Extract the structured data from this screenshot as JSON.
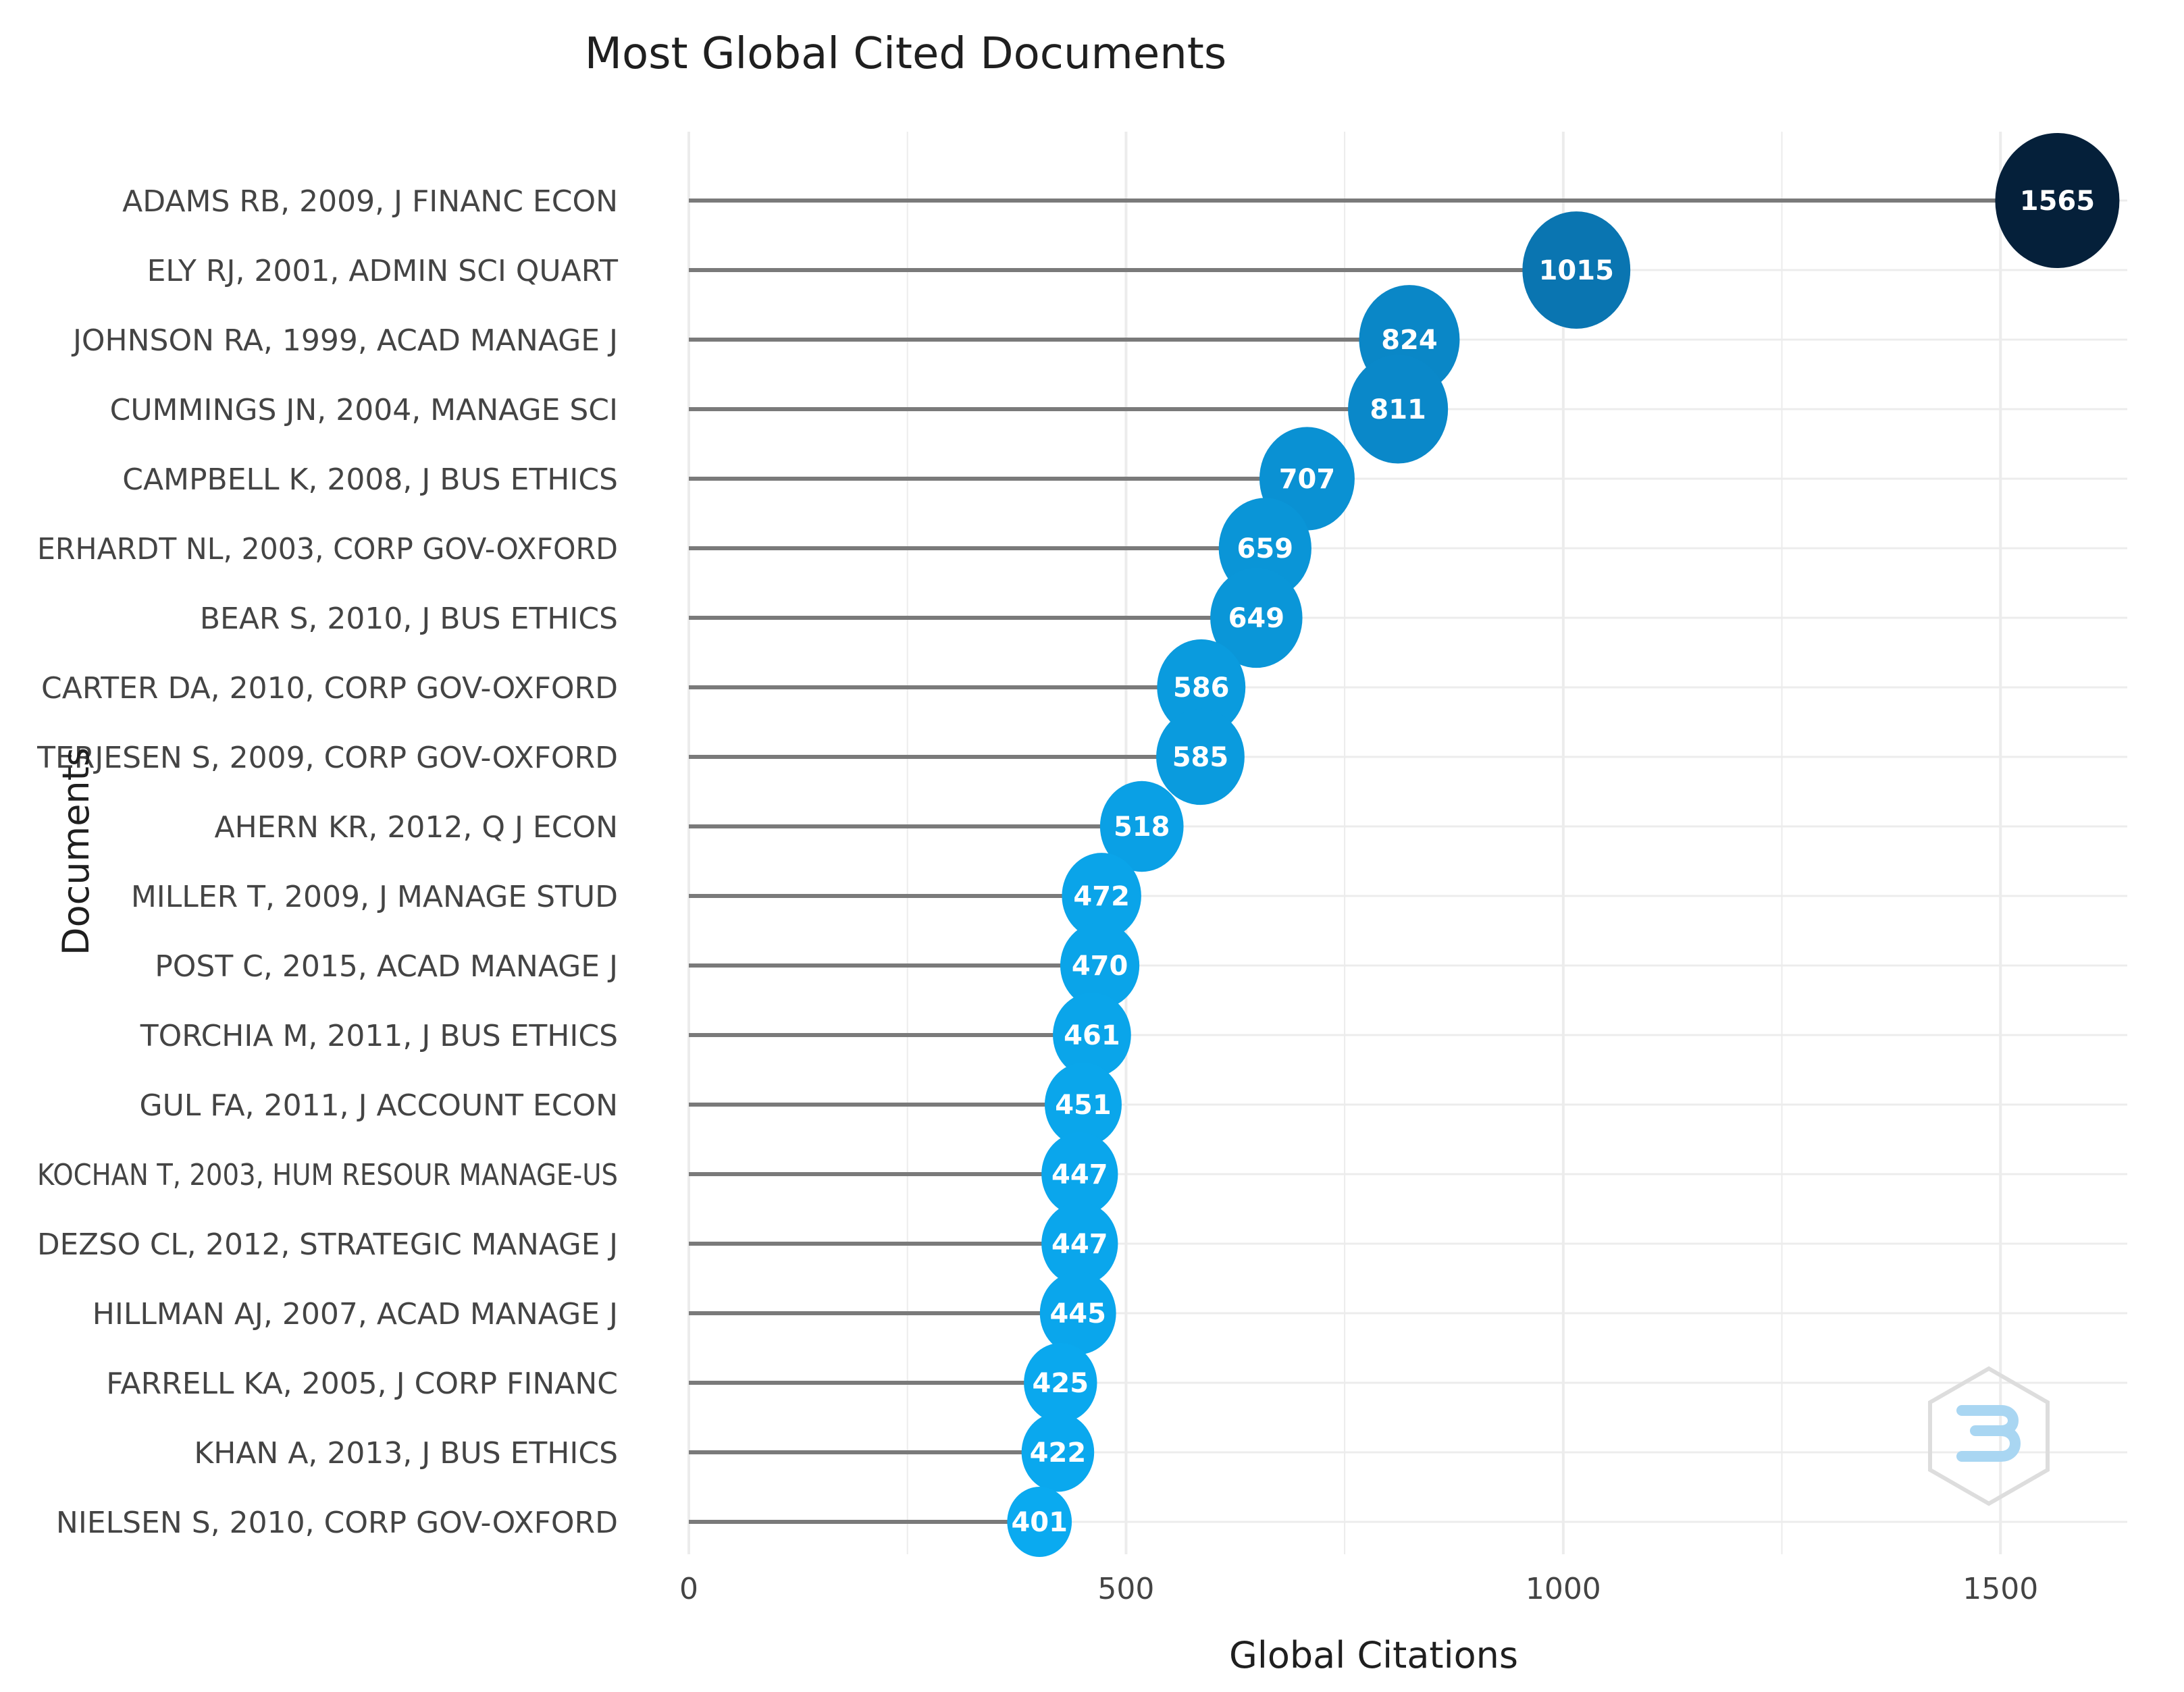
{
  "chart_data": {
    "type": "lollipop",
    "title": "Most Global Cited Documents",
    "xlabel": "Global Citations",
    "ylabel": "Documents",
    "xlim": [
      0,
      1645
    ],
    "xticks": [
      0,
      500,
      1000,
      1500
    ],
    "grid": true,
    "categories": [
      "ADAMS RB, 2009, J FINANC ECON",
      "ELY RJ, 2001, ADMIN SCI QUART",
      "JOHNSON RA, 1999, ACAD MANAGE J",
      "CUMMINGS JN, 2004, MANAGE SCI",
      "CAMPBELL K, 2008, J BUS ETHICS",
      "ERHARDT NL, 2003, CORP GOV-OXFORD",
      "BEAR S, 2010, J BUS ETHICS",
      "CARTER DA, 2010, CORP GOV-OXFORD",
      "TERJESEN S, 2009, CORP GOV-OXFORD",
      "AHERN KR, 2012, Q J ECON",
      "MILLER T, 2009, J MANAGE STUD",
      "POST C, 2015, ACAD MANAGE J",
      "TORCHIA M, 2011, J BUS ETHICS",
      "GUL FA, 2011, J ACCOUNT ECON",
      "KOCHAN T, 2003, HUM RESOUR MANAGE-US",
      "DEZSO CL, 2012, STRATEGIC MANAGE J",
      "HILLMAN AJ, 2007, ACAD MANAGE J",
      "FARRELL KA, 2005, J CORP FINANC",
      "KHAN A, 2013, J BUS ETHICS",
      "NIELSEN S, 2010, CORP GOV-OXFORD"
    ],
    "values": [
      1565,
      1015,
      824,
      811,
      707,
      659,
      649,
      586,
      585,
      518,
      472,
      470,
      461,
      451,
      447,
      447,
      445,
      425,
      422,
      401
    ],
    "color_scale": {
      "low": "#0aaaf0",
      "mid": "#0a7ab8",
      "high": "#05203a"
    }
  },
  "colors": {
    "stem": "#7a7a7a",
    "grid": "#ececec"
  }
}
